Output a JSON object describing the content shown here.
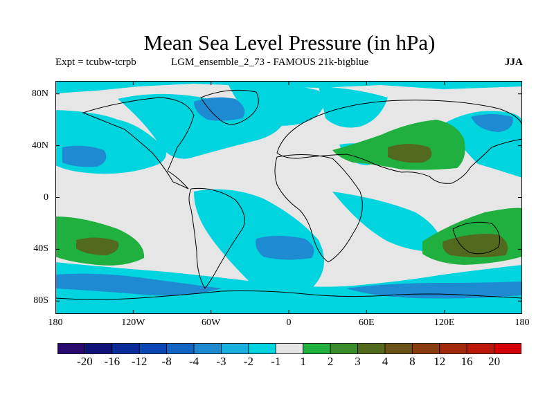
{
  "header": {
    "title": "Mean Sea Level Pressure (in hPa)",
    "expt": "Expt = tcubw-tcrpb",
    "run": "LGM_ensemble_2_73 - FAMOUS 21k-bigblue",
    "season": "JJA"
  },
  "map": {
    "projection": "cylindrical equidistant",
    "lat_range": [
      -90,
      90
    ],
    "lon_range": [
      -180,
      180
    ],
    "lat_ticks": [
      {
        "value": 80,
        "label": "80N"
      },
      {
        "value": 40,
        "label": "40N"
      },
      {
        "value": 0,
        "label": "0"
      },
      {
        "value": -40,
        "label": "40S"
      },
      {
        "value": -80,
        "label": "80S"
      }
    ],
    "lon_ticks": [
      {
        "value": -180,
        "label": "180"
      },
      {
        "value": -120,
        "label": "120W"
      },
      {
        "value": -60,
        "label": "60W"
      },
      {
        "value": 0,
        "label": "0"
      },
      {
        "value": 60,
        "label": "60E"
      },
      {
        "value": 120,
        "label": "120E"
      },
      {
        "value": 180,
        "label": "180"
      }
    ]
  },
  "colorbar": {
    "colors": [
      "#2a0a6e",
      "#10147a",
      "#0c2c9e",
      "#0a46b4",
      "#1264c4",
      "#1e8ad2",
      "#18aee0",
      "#00d4de",
      "#e6e6e6",
      "#20b040",
      "#3a8c2c",
      "#526a1e",
      "#6a5218",
      "#8a3c12",
      "#a42a0c",
      "#bc1808",
      "#d40000"
    ],
    "labels": [
      "-20",
      "-16",
      "-12",
      "-8",
      "-4",
      "-3",
      "-2",
      "-1",
      "1",
      "2",
      "3",
      "4",
      "8",
      "12",
      "16",
      "20"
    ]
  }
}
